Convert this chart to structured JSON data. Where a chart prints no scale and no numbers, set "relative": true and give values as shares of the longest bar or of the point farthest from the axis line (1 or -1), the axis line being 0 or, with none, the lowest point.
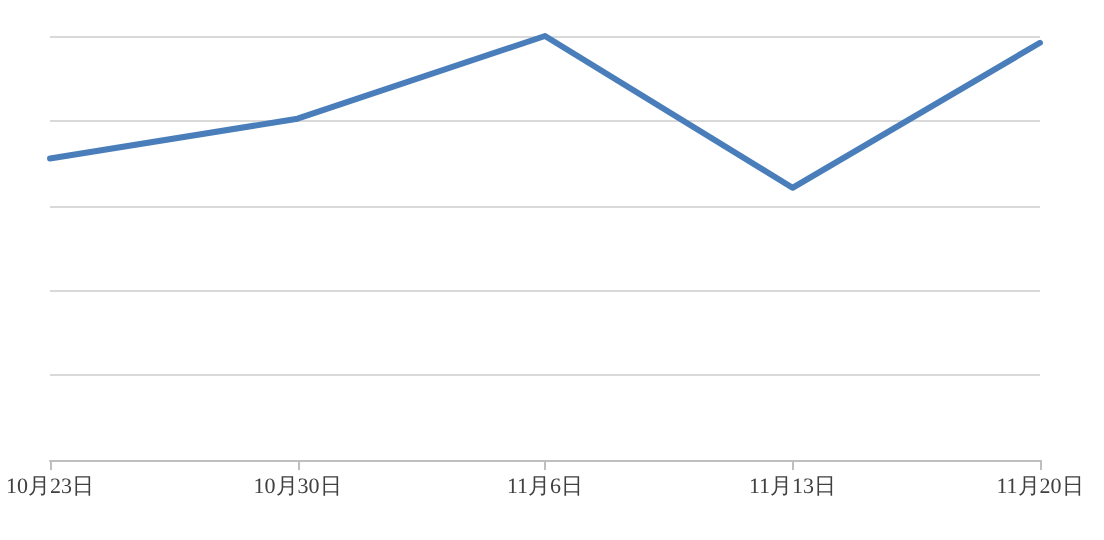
{
  "chart_data": {
    "type": "line",
    "relative": true,
    "categories": [
      "10月23日",
      "10月30日",
      "11月6日",
      "11月13日",
      "11月20日"
    ],
    "series": [
      {
        "color": "#4a7ebb",
        "values": [
          0.711,
          0.805,
          1,
          0.642,
          0.984
        ]
      }
    ],
    "grid": "y",
    "marker": "none",
    "line_style": "solid"
  }
}
